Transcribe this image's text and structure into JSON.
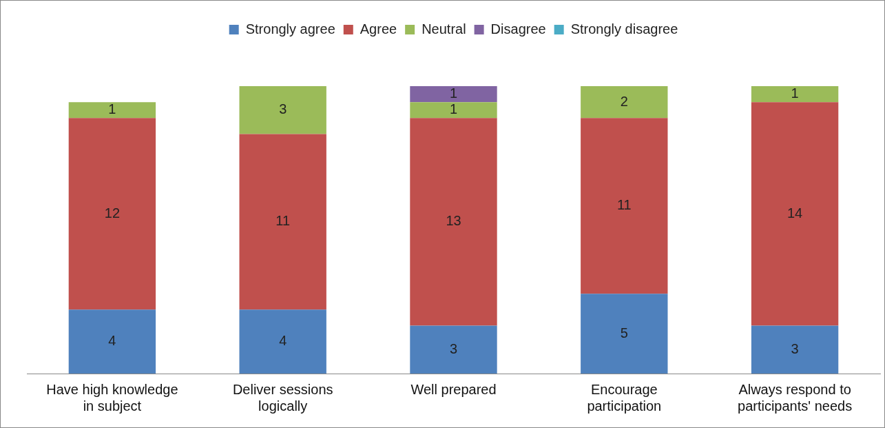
{
  "chart_data": {
    "type": "bar",
    "stacked": true,
    "data_labels": true,
    "legend": "top",
    "grid": false,
    "categories": [
      "Have high knowledge in subject",
      "Deliver sessions logically",
      "Well prepared",
      "Encourage participation",
      "Always respond to participants' needs"
    ],
    "series": [
      {
        "name": "Strongly agree",
        "color": "#4f81bd",
        "values": [
          4,
          4,
          3,
          5,
          3
        ]
      },
      {
        "name": "Agree",
        "color": "#c0504d",
        "values": [
          12,
          11,
          13,
          11,
          14
        ]
      },
      {
        "name": "Neutral",
        "color": "#9bbb59",
        "values": [
          1,
          3,
          1,
          2,
          1
        ]
      },
      {
        "name": "Disagree",
        "color": "#8064a2",
        "values": [
          null,
          null,
          1,
          null,
          null
        ]
      },
      {
        "name": "Strongly disagree",
        "color": "#4bacc6",
        "values": [
          null,
          null,
          null,
          null,
          null
        ]
      }
    ]
  }
}
